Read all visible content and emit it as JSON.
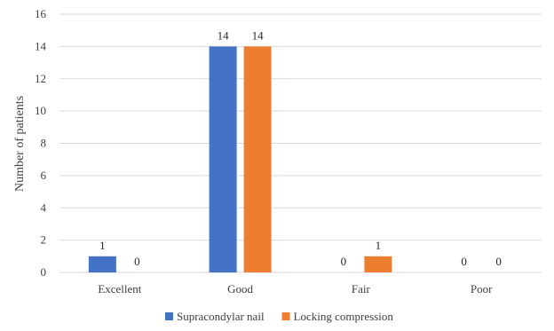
{
  "chart_data": {
    "type": "bar",
    "title": "",
    "xlabel": "",
    "ylabel": "Number of patients",
    "ylim": [
      0,
      16
    ],
    "yticks": [
      0,
      2,
      4,
      6,
      8,
      10,
      12,
      14,
      16
    ],
    "grid": "horizontal",
    "legend_position": "bottom",
    "categories": [
      "Excellent",
      "Good",
      "Fair",
      "Poor"
    ],
    "series": [
      {
        "name": "Supracondylar nail",
        "color": "#4472c4",
        "values": [
          1,
          14,
          0,
          0
        ]
      },
      {
        "name": "Locking compression",
        "color": "#ed7d31",
        "values": [
          0,
          14,
          1,
          0
        ]
      }
    ]
  }
}
